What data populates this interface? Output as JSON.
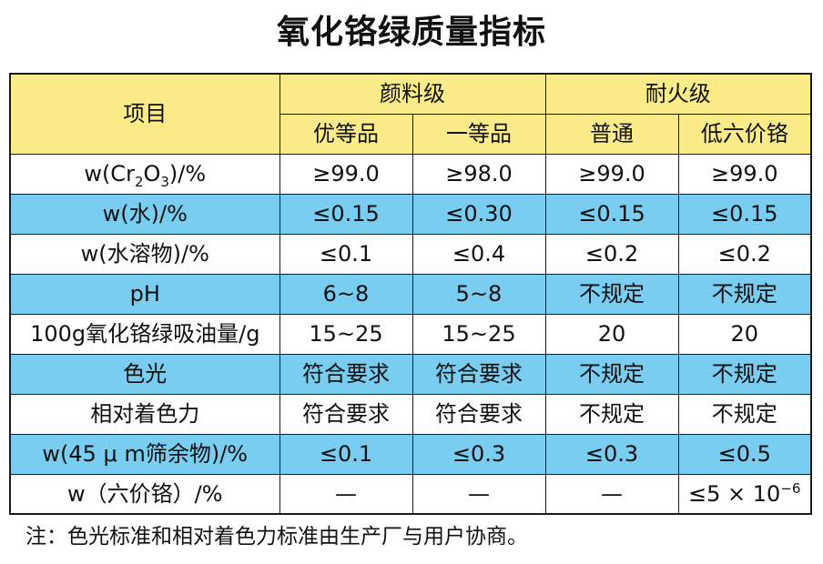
{
  "title": "氧化铬绿质量指标",
  "header": {
    "item": "项目",
    "group_pigment": "颜料级",
    "group_refractory": "耐火级",
    "cols": [
      "优等品",
      "一等品",
      "普通",
      "低六价铬"
    ]
  },
  "rows": [
    {
      "label_parts": [
        "w(Cr",
        "2",
        "O",
        "3",
        ")/%"
      ],
      "values": [
        "≥99.0",
        "≥98.0",
        "≥99.0",
        "≥99.0"
      ],
      "bg": "white"
    },
    {
      "label": "w(水)/%",
      "values": [
        "≤0.15",
        "≤0.30",
        "≤0.15",
        "≤0.15"
      ],
      "bg": "blue"
    },
    {
      "label": "w(水溶物)/%",
      "values": [
        "≤0.1",
        "≤0.4",
        "≤0.2",
        "≤0.2"
      ],
      "bg": "white"
    },
    {
      "label": "pH",
      "values": [
        "6~8",
        "5~8",
        "不规定",
        "不规定"
      ],
      "bg": "blue"
    },
    {
      "label": "100g氧化铬绿吸油量/g",
      "values": [
        "15~25",
        "15~25",
        "20",
        "20"
      ],
      "bg": "white"
    },
    {
      "label": "色光",
      "values": [
        "符合要求",
        "符合要求",
        "不规定",
        "不规定"
      ],
      "bg": "blue"
    },
    {
      "label": "相对着色力",
      "values": [
        "符合要求",
        "符合要求",
        "不规定",
        "不规定"
      ],
      "bg": "white"
    },
    {
      "label": "w(45 μ m筛余物)/%",
      "values": [
        "≤0.1",
        "≤0.3",
        "≤0.3",
        "≤0.5"
      ],
      "bg": "blue"
    },
    {
      "label": "w（六价铬）/%",
      "values": [
        "—",
        "—",
        "—"
      ],
      "last_parts": [
        "≤5 × 10",
        "−6"
      ],
      "bg": "white"
    }
  ],
  "note": "注：色光标准和相对着色力标准由生产厂与用户协商。",
  "colors": {
    "header_bg": "#fbec89",
    "alt_row_bg": "#78cdf0",
    "border": "#1a1a1a"
  }
}
